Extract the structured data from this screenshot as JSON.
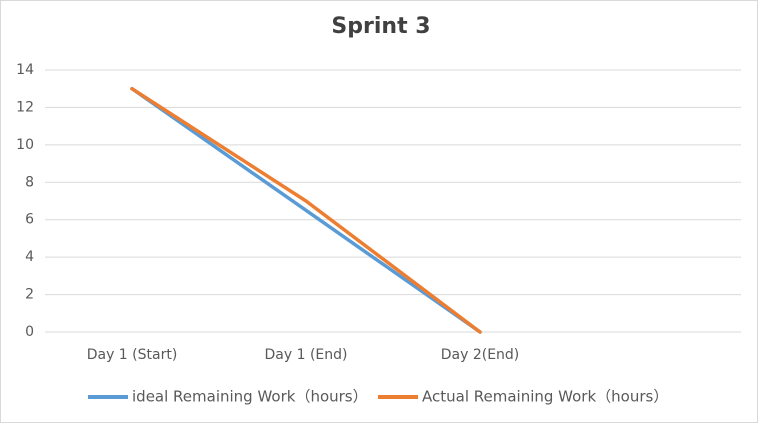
{
  "chart_data": {
    "type": "line",
    "title": "Sprint 3",
    "categories": [
      "Day 1 (Start)",
      "Day 1 (End)",
      "Day 2(End)",
      null
    ],
    "series": [
      {
        "name": "ideal Remaining Work（hours）",
        "color": "#5b9bd5",
        "values": [
          13,
          6.5,
          0,
          null
        ]
      },
      {
        "name": "Actual Remaining Work（hours）",
        "color": "#ed7d31",
        "values": [
          13,
          7,
          0,
          null
        ]
      }
    ],
    "ylim": [
      0,
      14
    ],
    "yticks": [
      0,
      2,
      4,
      6,
      8,
      10,
      12,
      14
    ],
    "grid": true,
    "legend": "bottom"
  }
}
